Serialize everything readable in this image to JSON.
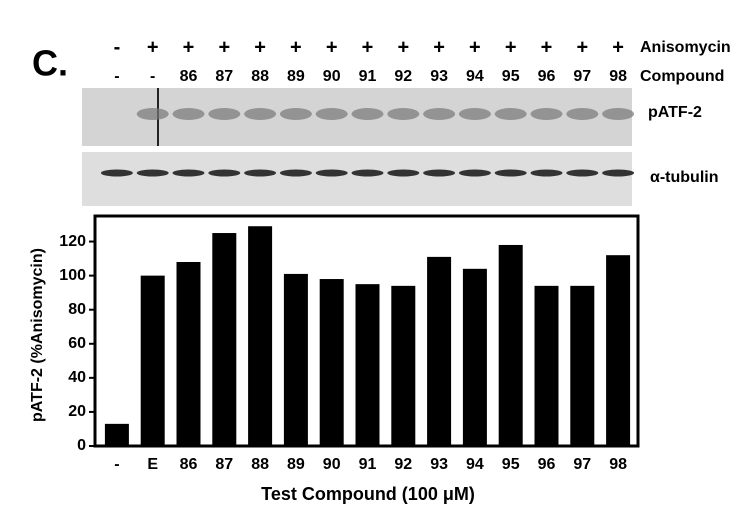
{
  "header": {
    "panel": "C.",
    "anisomycin": [
      "-",
      "+",
      "+",
      "+",
      "+",
      "+",
      "+",
      "+",
      "+",
      "+",
      "+",
      "+",
      "+",
      "+",
      "+"
    ],
    "anisomycin_label": "Anisomycin",
    "compound": [
      "-",
      "-",
      "86",
      "87",
      "88",
      "89",
      "90",
      "91",
      "92",
      "93",
      "94",
      "95",
      "96",
      "97",
      "98"
    ],
    "compound_label": "Compound"
  },
  "blots": [
    {
      "label": "pATF-2"
    },
    {
      "label": "α-tubulin"
    }
  ],
  "chart_data": {
    "type": "bar",
    "x_label": "Test Compound (100 μM)",
    "y_label": "pATF-2 (%Anisomycin)",
    "categories": [
      "-",
      "E",
      "86",
      "87",
      "88",
      "89",
      "90",
      "91",
      "92",
      "93",
      "94",
      "95",
      "96",
      "97",
      "98"
    ],
    "values": [
      13,
      100,
      108,
      125,
      129,
      101,
      98,
      95,
      94,
      111,
      104,
      118,
      94,
      94,
      112
    ],
    "color": "#000000",
    "ylim": [
      0,
      135
    ],
    "yticks": [
      0,
      20,
      40,
      60,
      80,
      100,
      120
    ]
  }
}
